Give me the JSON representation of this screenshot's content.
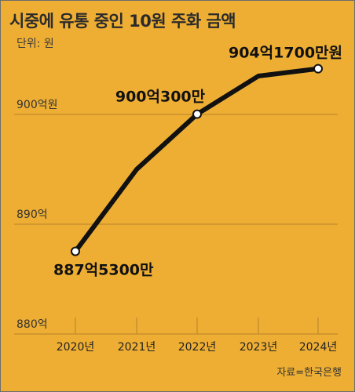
{
  "header": {
    "title": "시중에 유통 중인 10원 주화 금액",
    "unit": "단위: 원"
  },
  "footer": {
    "source": "자료=한국은행"
  },
  "colors": {
    "background": "#eeae33",
    "line": "#111111",
    "grid": "#b5832b",
    "marker_fill": "#ffffff"
  },
  "chart_data": {
    "type": "line",
    "title": "시중에 유통 중인 10원 주화 금액",
    "unit": "단위: 원",
    "categories": [
      "2020년",
      "2021년",
      "2022년",
      "2023년",
      "2024년"
    ],
    "series": [
      {
        "values": [
          88753000000,
          89500000000,
          90003000000,
          90350000000,
          90417000000
        ]
      }
    ],
    "ylim": [
      88000000000,
      90500000000
    ],
    "yticks": [
      {
        "value": 88000000000,
        "label": "880억"
      },
      {
        "value": 89000000000,
        "label": "890억"
      },
      {
        "value": 90000000000,
        "label": "900억원"
      }
    ],
    "data_labels": [
      {
        "index": 0,
        "text": "887억5300만"
      },
      {
        "index": 2,
        "text": "900억300만"
      },
      {
        "index": 4,
        "text": "904억1700만원"
      }
    ],
    "marked_points": [
      0,
      2,
      4
    ],
    "grid": true
  }
}
